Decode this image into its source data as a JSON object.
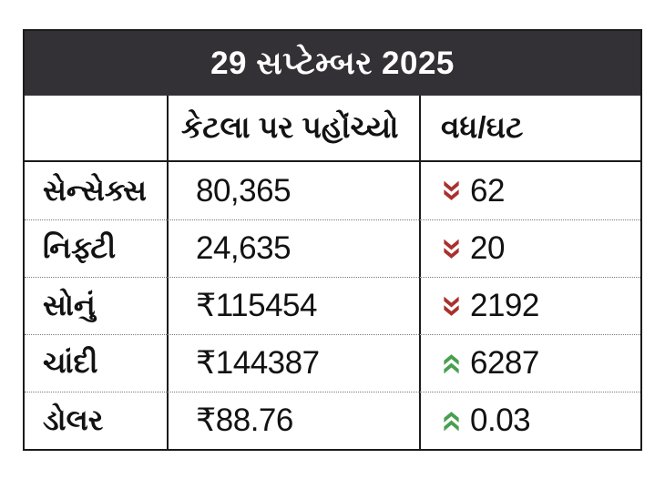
{
  "colors": {
    "header_bg": "#333135",
    "header_text": "#ffffff",
    "border": "#1b1b1b",
    "down": "#a8312e",
    "up": "#47a04f",
    "text": "#121212"
  },
  "chart_data": {
    "type": "table",
    "title": "29 સપ્ટેમ્બર 2025",
    "columns": [
      "",
      "કેટલા પર પહોંચ્યો",
      "વધ/ઘટ"
    ],
    "rows": [
      {
        "name": "સેન્સેક્સ",
        "value": "80,365",
        "change": "62",
        "direction": "down"
      },
      {
        "name": "નિફ્ટી",
        "value": "24,635",
        "change": "20",
        "direction": "down"
      },
      {
        "name": "સોનું",
        "value": "₹115454",
        "change": "2192",
        "direction": "down"
      },
      {
        "name": "ચાંદી",
        "value": "₹144387",
        "change": "6287",
        "direction": "up"
      },
      {
        "name": "ડોલર",
        "value": "₹88.76",
        "change": "0.03",
        "direction": "up"
      }
    ]
  }
}
